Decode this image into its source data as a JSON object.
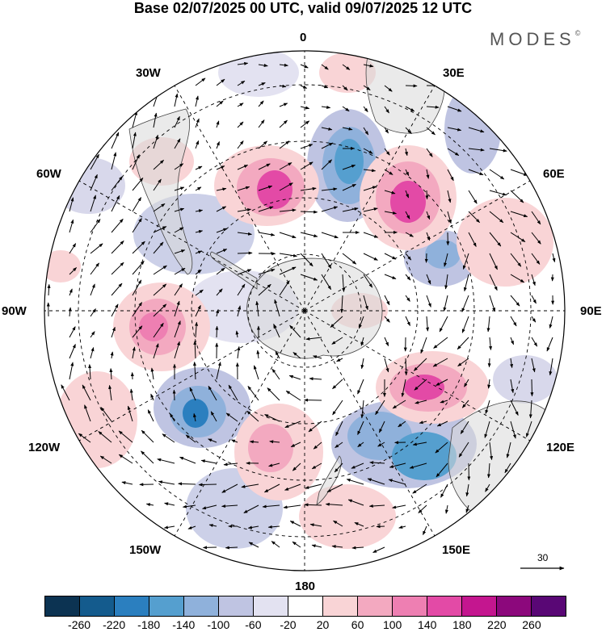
{
  "title": "Base 02/07/2025 00 UTC, valid 09/07/2025 12 UTC",
  "brand": {
    "name": "MODES",
    "mark": "©"
  },
  "map": {
    "projection": "south-polar-stereographic",
    "longitude_labels": {
      "top": "0",
      "top_right": "30E",
      "upper_right": "60E",
      "right": "90E",
      "lower_right": "120E",
      "bottom_right": "150E",
      "bottom": "180",
      "bottom_left": "150W",
      "lower_left": "120W",
      "left": "90W",
      "upper_left": "60W",
      "top_left": "30W"
    },
    "reference_vector": {
      "label": "30"
    }
  },
  "colorbar": {
    "colors": [
      "#0c3352",
      "#145b8d",
      "#2b7fbf",
      "#559fcf",
      "#8fb1db",
      "#bfc4e2",
      "#e3e2f1",
      "#ffffff",
      "#f9d4d6",
      "#f3a9c0",
      "#ee7fb2",
      "#e34aa6",
      "#c4168f",
      "#8c087c",
      "#590775"
    ],
    "ticks": [
      "-260",
      "-220",
      "-180",
      "-140",
      "-100",
      "-60",
      "-20",
      "20",
      "60",
      "100",
      "140",
      "180",
      "220",
      "260"
    ]
  }
}
